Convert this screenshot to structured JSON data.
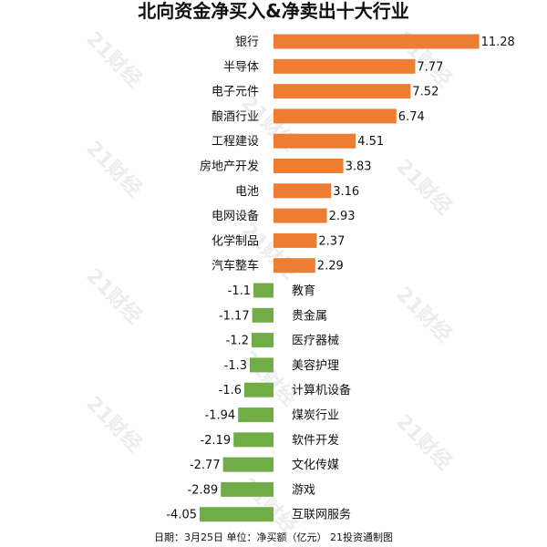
{
  "chart_data": {
    "type": "bar",
    "orientation": "horizontal",
    "title": "北向资金净买入&净卖出十大行业",
    "categories": [
      "银行",
      "半导体",
      "电子元件",
      "酿酒行业",
      "工程建设",
      "房地产开发",
      "电池",
      "电网设备",
      "化学制品",
      "汽车整车",
      "教育",
      "贵金属",
      "医疗器械",
      "美容护理",
      "计算机设备",
      "煤炭行业",
      "软件开发",
      "文化传媒",
      "游戏",
      "互联网服务"
    ],
    "values": [
      11.28,
      7.77,
      7.52,
      6.74,
      4.51,
      3.83,
      3.16,
      2.93,
      2.37,
      2.29,
      -1.1,
      -1.17,
      -1.2,
      -1.3,
      -1.6,
      -1.94,
      -2.19,
      -2.77,
      -2.89,
      -4.05
    ],
    "value_labels": [
      "11.28",
      "7.77",
      "7.52",
      "6.74",
      "4.51",
      "3.83",
      "3.16",
      "2.93",
      "2.37",
      "2.29",
      "-1.1",
      "-1.17",
      "-1.2",
      "-1.3",
      "-1.6",
      "-1.94",
      "-2.19",
      "-2.77",
      "-2.89",
      "-4.05"
    ],
    "xlim": [
      -4.05,
      11.28
    ],
    "grid": false,
    "colors": {
      "positive": "#ED7D31",
      "negative": "#70AD47"
    },
    "footnote": "日期：3月25日 单位：净买额（亿元） 21投资通制图"
  },
  "watermark": "21财经"
}
